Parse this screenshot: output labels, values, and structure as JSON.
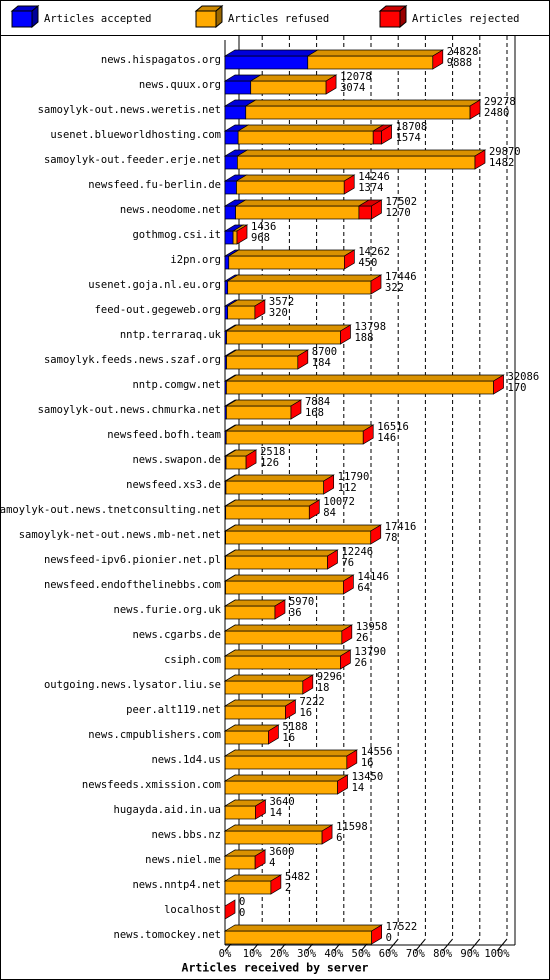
{
  "chart_data": {
    "type": "bar3d",
    "x_label": "Articles received by server",
    "categories": [
      "news.hispagatos.org",
      "news.quux.org",
      "samoylyk-out.news.weretis.net",
      "usenet.blueworldhosting.com",
      "samoylyk-out.feeder.erje.net",
      "newsfeed.fu-berlin.de",
      "news.neodome.net",
      "gothmog.csi.it",
      "i2pn.org",
      "usenet.goja.nl.eu.org",
      "feed-out.gegeweb.org",
      "nntp.terraraq.uk",
      "samoylyk.feeds.news.szaf.org",
      "nntp.comgw.net",
      "samoylyk-out.news.chmurka.net",
      "newsfeed.bofh.team",
      "news.swapon.de",
      "newsfeed.xs3.de",
      "samoylyk-out.news.tnetconsulting.net",
      "samoylyk-net-out.news.mb-net.net",
      "newsfeed-ipv6.pionier.net.pl",
      "newsfeed.endofthelinebbs.com",
      "news.furie.org.uk",
      "news.cgarbs.de",
      "csiph.com",
      "outgoing.news.lysator.liu.se",
      "peer.alt119.net",
      "news.cmpublishers.com",
      "news.1d4.us",
      "newsfeeds.xmission.com",
      "hugayda.aid.in.ua",
      "news.bbs.nz",
      "news.niel.me",
      "news.nntp4.net",
      "localhost",
      "news.tomockey.net"
    ],
    "totals": [
      24828,
      12078,
      29278,
      18708,
      29870,
      14246,
      17502,
      1436,
      14262,
      17446,
      3572,
      13798,
      8700,
      32086,
      7884,
      16516,
      2518,
      11790,
      10072,
      17416,
      12246,
      14146,
      5970,
      13958,
      13790,
      9296,
      7222,
      5188,
      14556,
      13450,
      3640,
      11598,
      3600,
      5482,
      0,
      17522
    ],
    "series": [
      {
        "name": "Articles accepted",
        "color": "#0000ff",
        "values": [
          9888,
          3074,
          2480,
          1574,
          1482,
          1374,
          1270,
          968,
          450,
          322,
          320,
          188,
          184,
          170,
          168,
          146,
          126,
          112,
          84,
          78,
          76,
          64,
          36,
          26,
          26,
          18,
          16,
          16,
          16,
          14,
          14,
          6,
          4,
          2,
          0,
          0
        ]
      },
      {
        "name": "Articles refused",
        "color": "#ffaa00",
        "values": [
          14940,
          9004,
          26798,
          16134,
          28388,
          12872,
          14732,
          468,
          13812,
          17124,
          3252,
          13610,
          8516,
          31916,
          7716,
          16370,
          2392,
          11678,
          9988,
          17338,
          12170,
          14082,
          5934,
          13932,
          13764,
          9278,
          7206,
          5172,
          14540,
          13436,
          3626,
          11592,
          3596,
          5480,
          0,
          17522
        ]
      },
      {
        "name": "Articles rejected",
        "color": "#ff0000",
        "values": [
          0,
          0,
          0,
          1000,
          0,
          0,
          1500,
          0,
          0,
          0,
          0,
          0,
          0,
          0,
          0,
          0,
          0,
          0,
          0,
          0,
          0,
          0,
          0,
          0,
          0,
          0,
          0,
          0,
          0,
          0,
          0,
          0,
          0,
          0,
          0,
          0
        ]
      }
    ],
    "xlim": [
      0,
      32500
    ],
    "xticks": [
      {
        "value": 0,
        "label": "0%"
      },
      {
        "value": 3250,
        "label": "10%"
      },
      {
        "value": 6500,
        "label": "20%"
      },
      {
        "value": 9750,
        "label": "30%"
      },
      {
        "value": 13000,
        "label": "40%"
      },
      {
        "value": 16250,
        "label": "50%"
      },
      {
        "value": 19500,
        "label": "60%"
      },
      {
        "value": 22750,
        "label": "70%"
      },
      {
        "value": 26000,
        "label": "80%"
      },
      {
        "value": 29250,
        "label": "90%"
      },
      {
        "value": 32500,
        "label": "100%"
      }
    ],
    "grid": true
  }
}
